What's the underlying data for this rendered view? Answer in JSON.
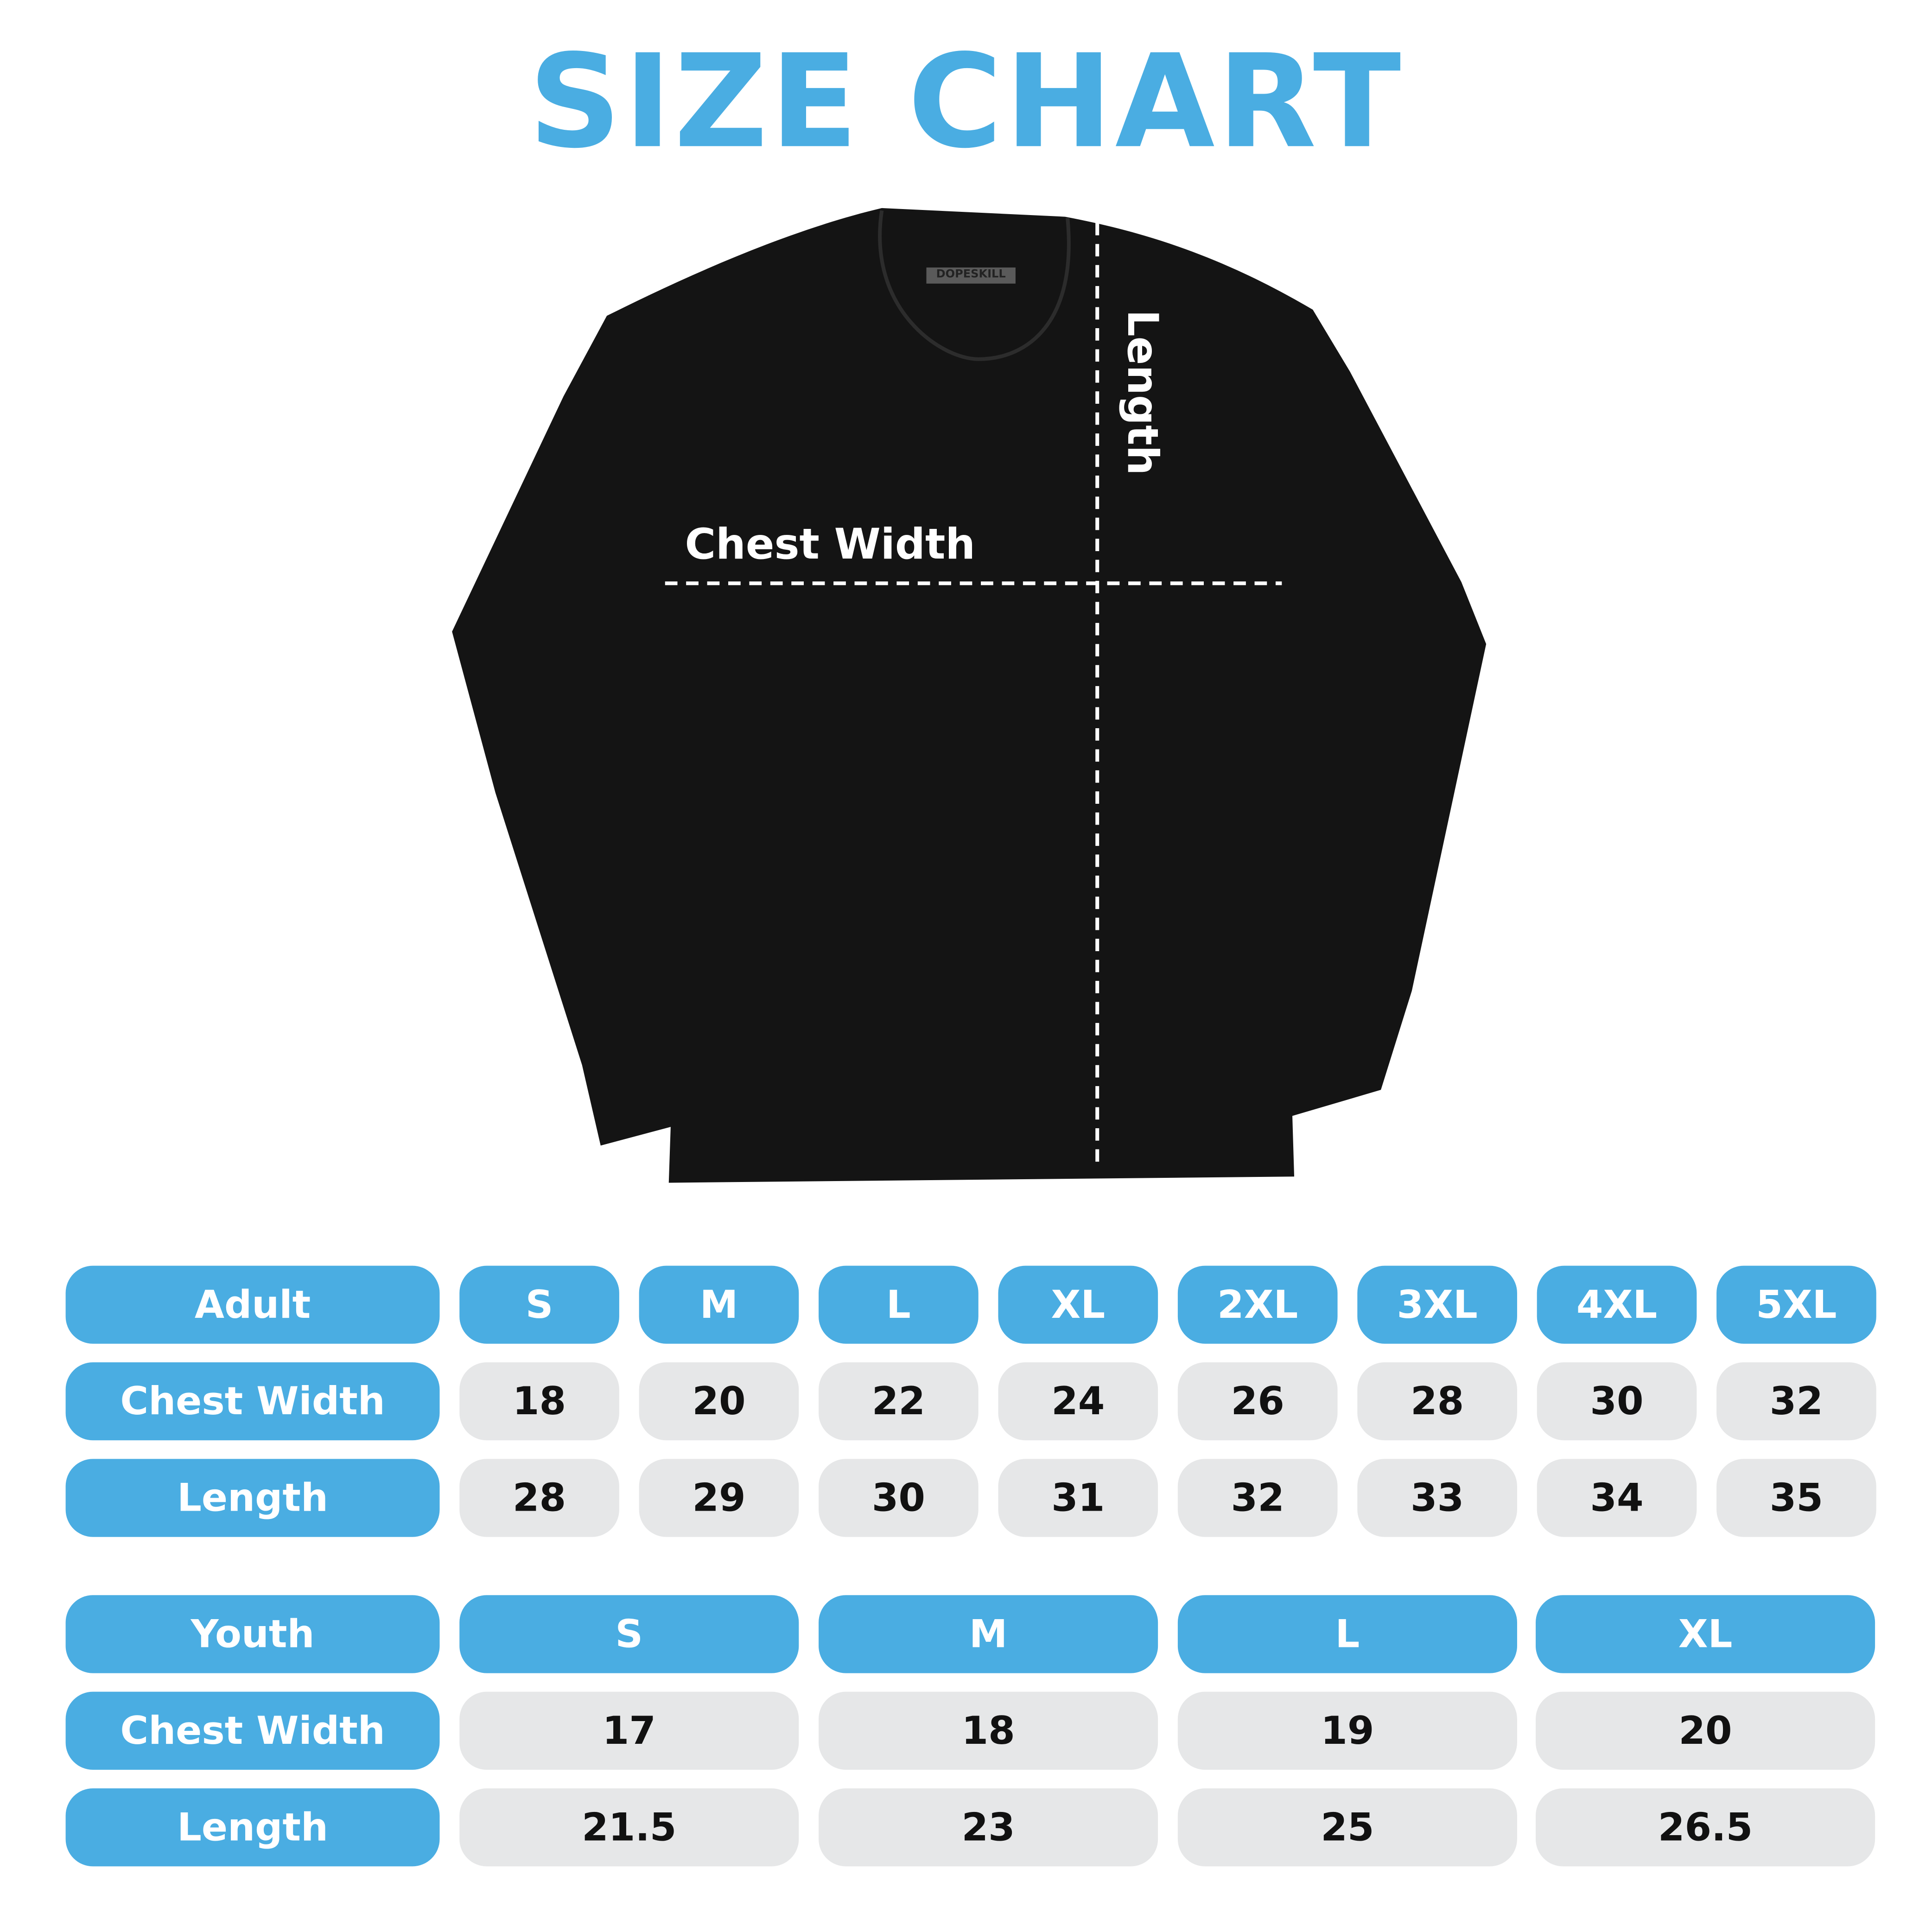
{
  "title": "SIZE CHART",
  "colors": {
    "accent": "#4AADE2",
    "cell_gray": "#E6E7E8",
    "shirt": "#141414"
  },
  "shirt": {
    "brand_tag": "DOPESKILL",
    "chest_label": "Chest Width",
    "length_label": "Length"
  },
  "adult": {
    "header": "Adult",
    "sizes": [
      "S",
      "M",
      "L",
      "XL",
      "2XL",
      "3XL",
      "4XL",
      "5XL"
    ],
    "rows": [
      {
        "label": "Chest Width",
        "values": [
          "18",
          "20",
          "22",
          "24",
          "26",
          "28",
          "30",
          "32"
        ]
      },
      {
        "label": "Length",
        "values": [
          "28",
          "29",
          "30",
          "31",
          "32",
          "33",
          "34",
          "35"
        ]
      }
    ]
  },
  "youth": {
    "header": "Youth",
    "sizes": [
      "S",
      "M",
      "L",
      "XL"
    ],
    "rows": [
      {
        "label": "Chest Width",
        "values": [
          "17",
          "18",
          "19",
          "20"
        ]
      },
      {
        "label": "Length",
        "values": [
          "21.5",
          "23",
          "25",
          "26.5"
        ]
      }
    ]
  }
}
